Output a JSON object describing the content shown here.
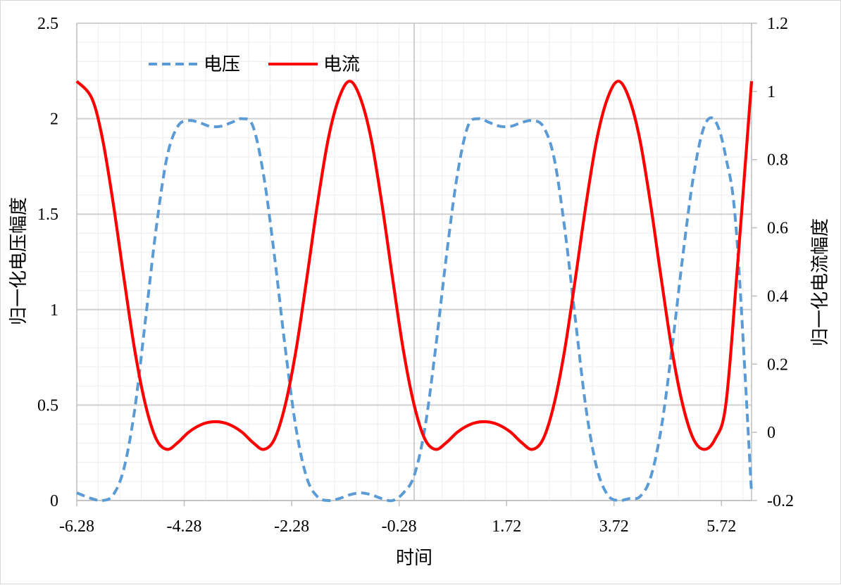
{
  "chart_data": {
    "type": "line",
    "title": "",
    "xlabel": "时间",
    "ylabel": "归一化电压幅度",
    "y2label": "归一化电流幅度",
    "xlim": [
      -6.28,
      6.28
    ],
    "ylim": [
      0,
      2.5
    ],
    "y2lim": [
      -0.2,
      1.2
    ],
    "x_ticks": [
      "-6.28",
      "-4.28",
      "-2.28",
      "-0.28",
      "1.72",
      "3.72",
      "5.72"
    ],
    "y_ticks": [
      "0",
      "0.5",
      "1",
      "1.5",
      "2",
      "2.5"
    ],
    "y2_ticks": [
      "-0.2",
      "0",
      "0.2",
      "0.4",
      "0.6",
      "0.8",
      "1",
      "1.2"
    ],
    "grid": true,
    "legend_position": "top-left",
    "series": [
      {
        "name": "电压",
        "axis": "left",
        "style": "dashed",
        "color": "#5b9bd5",
        "x": [
          -6.28,
          -6.0,
          -5.8,
          -5.6,
          -5.4,
          -5.2,
          -5.0,
          -4.8,
          -4.6,
          -4.4,
          -4.2,
          -4.0,
          -3.8,
          -3.6,
          -3.4,
          -3.2,
          -3.0,
          -2.8,
          -2.6,
          -2.4,
          -2.2,
          -2.0,
          -1.8,
          -1.6,
          -1.4,
          -1.2,
          -1.0,
          -0.8,
          -0.6,
          -0.4,
          -0.2,
          0.0,
          0.2,
          0.4,
          0.6,
          0.8,
          1.0,
          1.2,
          1.4,
          1.6,
          1.8,
          2.0,
          2.2,
          2.4,
          2.6,
          2.8,
          3.0,
          3.2,
          3.4,
          3.6,
          3.8,
          4.0,
          4.2,
          4.4,
          4.6,
          4.8,
          5.0,
          5.2,
          5.4,
          5.6,
          5.8,
          6.0,
          6.28
        ],
        "y": [
          0.04,
          0.01,
          0.0,
          0.03,
          0.17,
          0.48,
          0.95,
          1.43,
          1.8,
          1.96,
          1.99,
          1.98,
          1.96,
          1.96,
          1.98,
          2.0,
          1.96,
          1.7,
          1.28,
          0.8,
          0.38,
          0.12,
          0.02,
          0.0,
          0.01,
          0.03,
          0.04,
          0.03,
          0.01,
          0.0,
          0.04,
          0.13,
          0.38,
          0.8,
          1.28,
          1.7,
          1.96,
          2.0,
          1.98,
          1.96,
          1.96,
          1.98,
          1.99,
          1.96,
          1.8,
          1.43,
          0.95,
          0.48,
          0.17,
          0.03,
          0.0,
          0.01,
          0.02,
          0.12,
          0.38,
          0.8,
          1.28,
          1.7,
          1.96,
          1.99,
          1.8,
          1.4,
          0.04
        ]
      },
      {
        "name": "电流",
        "axis": "right",
        "style": "solid",
        "color": "#ff0000",
        "x": [
          -6.28,
          -6.0,
          -5.8,
          -5.6,
          -5.4,
          -5.2,
          -5.0,
          -4.8,
          -4.6,
          -4.4,
          -4.2,
          -4.0,
          -3.8,
          -3.6,
          -3.4,
          -3.2,
          -3.0,
          -2.8,
          -2.6,
          -2.4,
          -2.2,
          -2.0,
          -1.8,
          -1.6,
          -1.4,
          -1.2,
          -1.0,
          -0.8,
          -0.6,
          -0.4,
          -0.2,
          0.0,
          0.2,
          0.4,
          0.6,
          0.8,
          1.0,
          1.2,
          1.4,
          1.6,
          1.8,
          2.0,
          2.2,
          2.4,
          2.6,
          2.8,
          3.0,
          3.2,
          3.4,
          3.6,
          3.8,
          4.0,
          4.2,
          4.4,
          4.6,
          4.8,
          5.0,
          5.2,
          5.4,
          5.6,
          5.8,
          6.0,
          6.28
        ],
        "y": [
          1.03,
          0.98,
          0.86,
          0.67,
          0.45,
          0.24,
          0.08,
          -0.02,
          -0.05,
          -0.03,
          0.0,
          0.02,
          0.03,
          0.03,
          0.02,
          0.0,
          -0.03,
          -0.05,
          -0.02,
          0.08,
          0.24,
          0.45,
          0.67,
          0.86,
          0.98,
          1.03,
          0.98,
          0.86,
          0.67,
          0.45,
          0.24,
          0.08,
          -0.02,
          -0.05,
          -0.03,
          0.0,
          0.02,
          0.03,
          0.03,
          0.02,
          0.0,
          -0.03,
          -0.05,
          -0.02,
          0.08,
          0.24,
          0.45,
          0.67,
          0.86,
          0.98,
          1.03,
          0.98,
          0.86,
          0.67,
          0.45,
          0.24,
          0.08,
          -0.02,
          -0.05,
          -0.02,
          0.08,
          0.45,
          1.03
        ]
      }
    ]
  }
}
